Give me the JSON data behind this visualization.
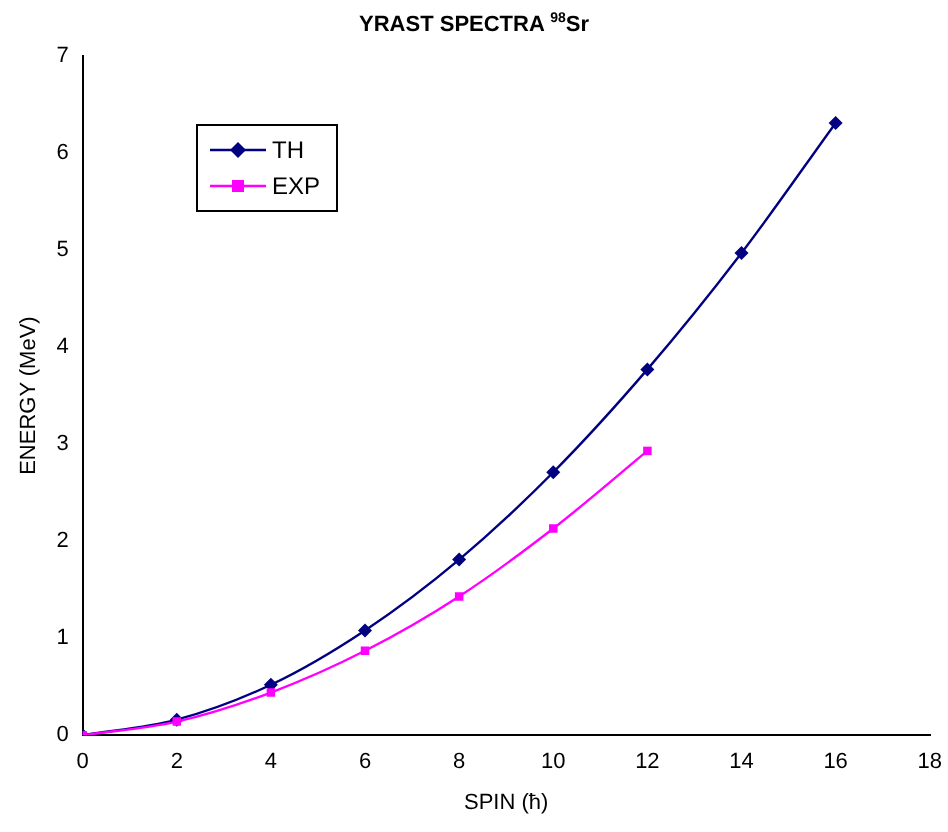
{
  "chart_data": {
    "type": "line",
    "title": "YRAST SPECTRA $^{98}$Sr",
    "xlabel": "SPIN (ħ)",
    "ylabel": "ENERGY (MeV)",
    "x": [
      0,
      2,
      4,
      6,
      8,
      10,
      12,
      14,
      16
    ],
    "series": [
      {
        "name": "TH",
        "color": "#000080",
        "marker": "diamond",
        "values": [
          0,
          0.16,
          0.52,
          1.08,
          1.81,
          2.71,
          3.77,
          4.97,
          6.31
        ]
      },
      {
        "name": "EXP",
        "color": "#ff00ff",
        "marker": "square",
        "values": [
          0,
          0.14,
          0.44,
          0.87,
          1.43,
          2.13,
          2.93,
          null,
          null
        ]
      }
    ],
    "xlim": [
      0,
      18
    ],
    "xticks": [
      0,
      2,
      4,
      6,
      8,
      10,
      12,
      14,
      16,
      18
    ],
    "ylim": [
      0,
      7
    ],
    "yticks": [
      0,
      1,
      2,
      3,
      4,
      5,
      6,
      7
    ],
    "grid": false,
    "legend": "top left"
  }
}
